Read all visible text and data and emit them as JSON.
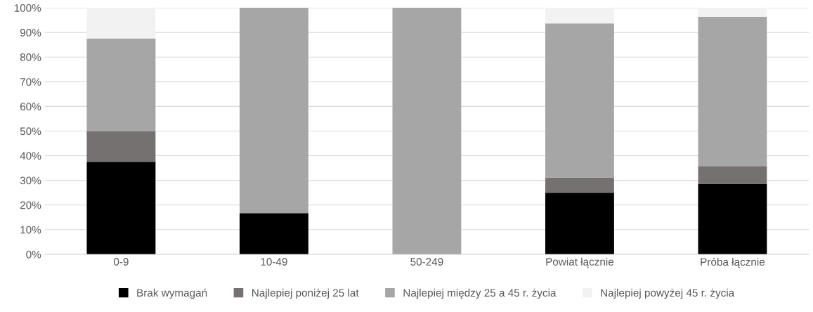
{
  "chart_data": {
    "type": "bar",
    "stacked": true,
    "categories": [
      "0-9",
      "10-49",
      "50-249",
      "Powiat łącznie",
      "Próba łącznie"
    ],
    "series": [
      {
        "name": "Brak wymagań",
        "color": "#000000",
        "values": [
          37.5,
          16.7,
          0,
          25,
          28.6
        ]
      },
      {
        "name": "Najlepiej poniżej 25 lat",
        "color": "#767171",
        "values": [
          12.5,
          0,
          0,
          6.2,
          7.2
        ]
      },
      {
        "name": "Najlepiej między 25 a 45 r. życia",
        "color": "#a6a6a6",
        "values": [
          37.5,
          83.3,
          100,
          62.5,
          60.6
        ]
      },
      {
        "name": "Najlepiej powyżej 45 r. życia",
        "color": "#f2f2f2",
        "values": [
          12.5,
          0,
          0,
          6.3,
          3.6
        ]
      }
    ],
    "ylim": [
      0,
      100
    ],
    "yticks": [
      {
        "value": 0,
        "label": "0%"
      },
      {
        "value": 10,
        "label": "10%"
      },
      {
        "value": 20,
        "label": "20%"
      },
      {
        "value": 30,
        "label": "30%"
      },
      {
        "value": 40,
        "label": "40%"
      },
      {
        "value": 50,
        "label": "50%"
      },
      {
        "value": 60,
        "label": "60%"
      },
      {
        "value": 70,
        "label": "70%"
      },
      {
        "value": 80,
        "label": "80%"
      },
      {
        "value": 90,
        "label": "90%"
      },
      {
        "value": 100,
        "label": "100%"
      }
    ],
    "grid": "y",
    "legend": "bottom"
  }
}
